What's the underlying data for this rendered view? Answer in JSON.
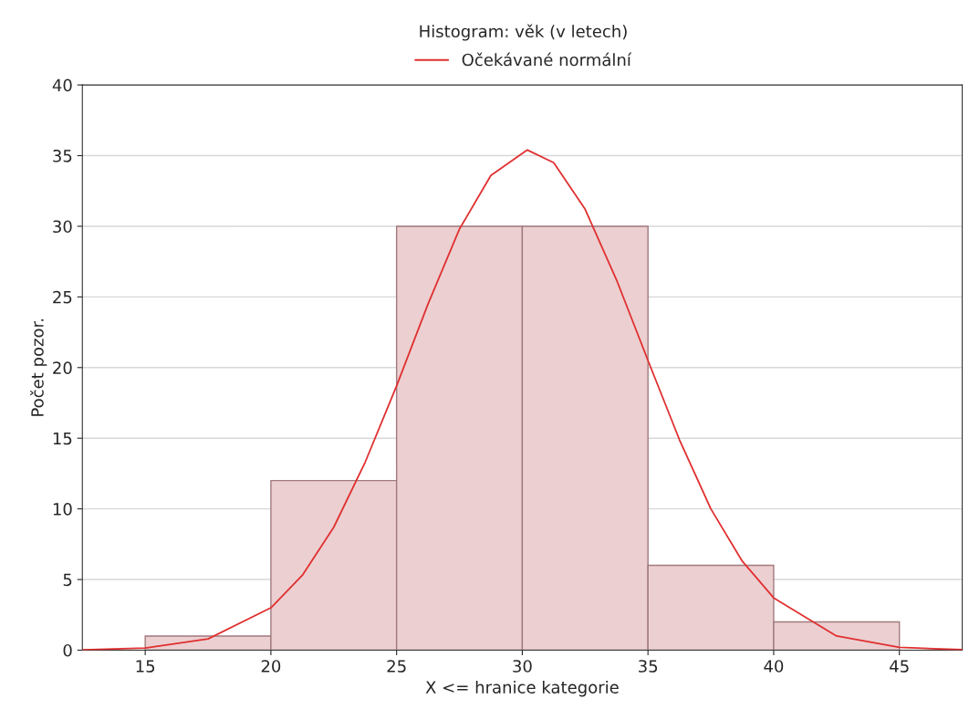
{
  "chart_data": {
    "type": "histogram",
    "title": "Histogram: věk (v letech)",
    "xlabel": "X <= hranice kategorie",
    "ylabel": "Počet pozor.",
    "bins": [
      15,
      20,
      25,
      30,
      35,
      40,
      45
    ],
    "values": [
      1,
      12,
      30,
      30,
      6,
      2
    ],
    "color": "#eccfd1",
    "series": [
      {
        "type": "line",
        "name": "Očekávané normální",
        "color": "#e03030",
        "x": [
          12.5,
          15,
          17.5,
          20,
          21.25,
          22.5,
          23.75,
          25,
          26.25,
          27.5,
          28.75,
          30.2,
          31.25,
          32.5,
          33.75,
          35,
          36.25,
          37.5,
          38.75,
          40,
          42.5,
          45,
          47.5
        ],
        "values": [
          0.02,
          0.15,
          0.8,
          3.0,
          5.3,
          8.7,
          13.3,
          18.7,
          24.5,
          29.8,
          33.6,
          35.4,
          34.5,
          31.2,
          26.2,
          20.5,
          14.9,
          10.0,
          6.3,
          3.7,
          1.0,
          0.2,
          0.03
        ]
      }
    ],
    "xlim": [
      12.5,
      47.5
    ],
    "xticks": [
      15,
      20,
      25,
      30,
      35,
      40,
      45
    ],
    "ylim": [
      0,
      40
    ],
    "yticks": [
      0,
      5,
      10,
      15,
      20,
      25,
      30,
      35,
      40
    ],
    "grid": "y",
    "legend": "top"
  }
}
